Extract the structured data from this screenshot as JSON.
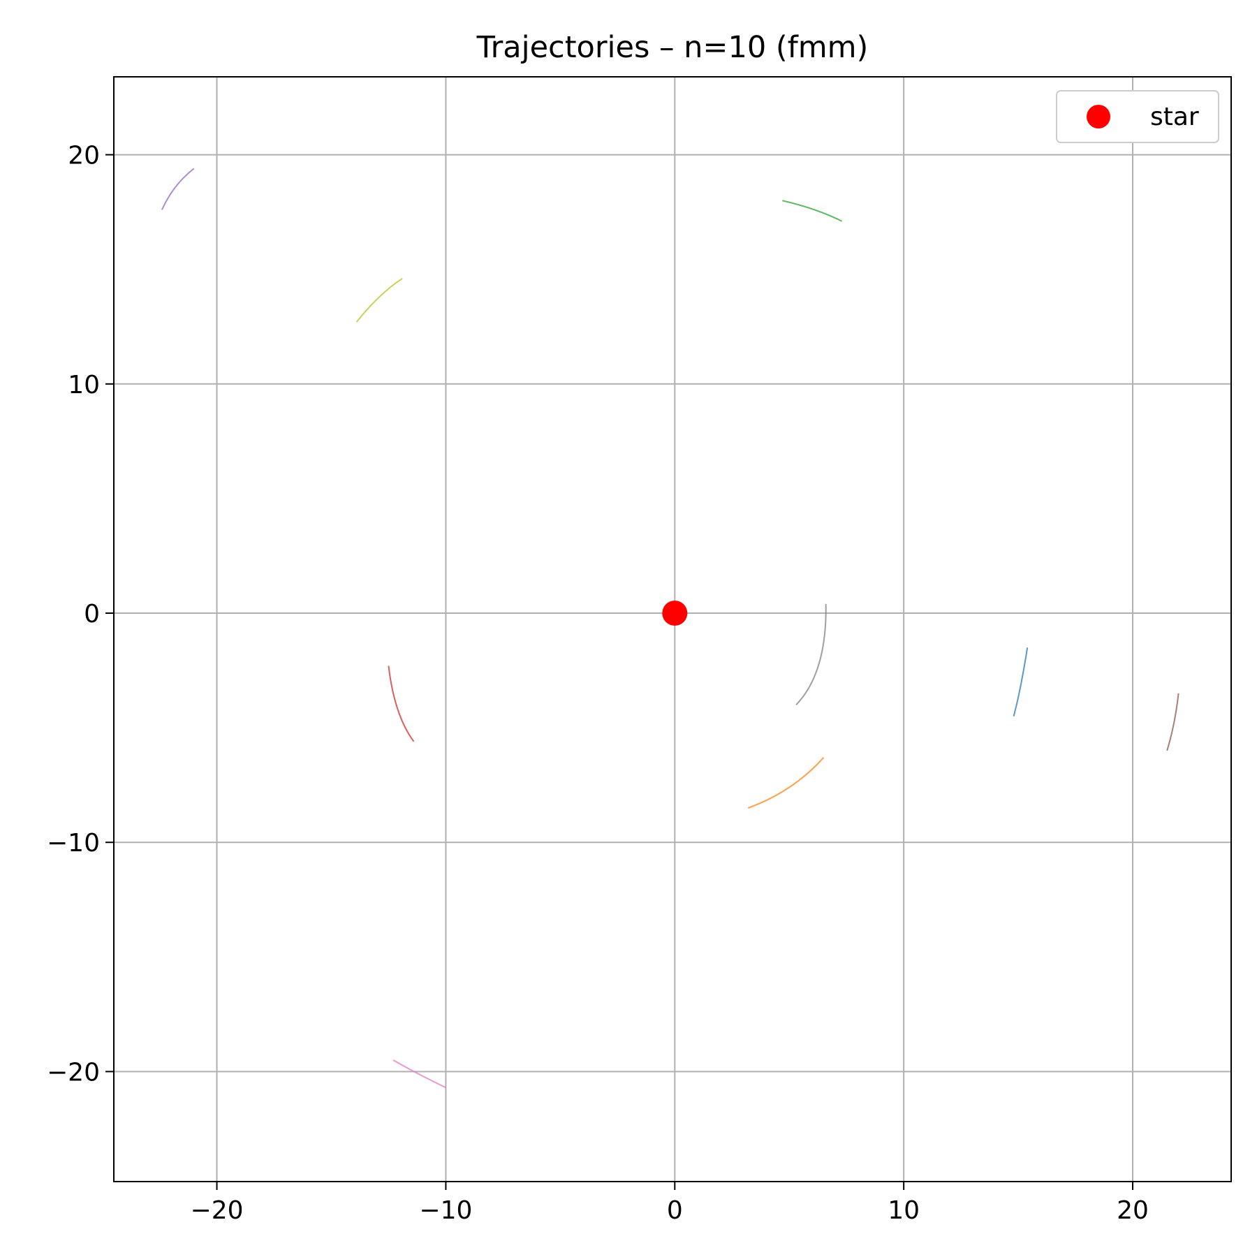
{
  "chart_data": {
    "type": "line",
    "title": "Trajectories – n=10 (fmm)",
    "xlabel": "",
    "ylabel": "",
    "xlim": [
      -24.5,
      24.3
    ],
    "ylim": [
      -24.8,
      23.4
    ],
    "xticks": [
      -20,
      -10,
      0,
      10,
      20
    ],
    "yticks": [
      20,
      10,
      0,
      -10,
      -20
    ],
    "xtick_labels": [
      "−20",
      "−10",
      "0",
      "10",
      "20"
    ],
    "ytick_labels": [
      "20",
      "10",
      "0",
      "−10",
      "−20"
    ],
    "grid": true,
    "legend": {
      "position": "top-right",
      "entries": [
        {
          "label": "star",
          "marker": "circle",
          "color": "#ff0000"
        }
      ]
    },
    "star": {
      "x": 0,
      "y": 0,
      "color": "#ff0000"
    },
    "series": [
      {
        "color": "#1f77b4",
        "points": [
          [
            15.4,
            -1.5
          ],
          [
            15.1,
            -3.2
          ],
          [
            14.8,
            -4.5
          ]
        ]
      },
      {
        "color": "#ff7f0e",
        "points": [
          [
            3.2,
            -8.5
          ],
          [
            5.0,
            -7.6
          ],
          [
            6.5,
            -6.3
          ]
        ]
      },
      {
        "color": "#2ca02c",
        "points": [
          [
            4.7,
            18.0
          ],
          [
            6.1,
            17.6
          ],
          [
            7.3,
            17.1
          ]
        ]
      },
      {
        "color": "#d62728",
        "points": [
          [
            -12.5,
            -2.3
          ],
          [
            -12.1,
            -4.2
          ],
          [
            -11.4,
            -5.6
          ]
        ]
      },
      {
        "color": "#9467bd",
        "points": [
          [
            -22.4,
            17.6
          ],
          [
            -21.8,
            18.6
          ],
          [
            -21.0,
            19.4
          ]
        ]
      },
      {
        "color": "#8c564b",
        "points": [
          [
            22.0,
            -3.5
          ],
          [
            21.8,
            -4.8
          ],
          [
            21.5,
            -6.0
          ]
        ]
      },
      {
        "color": "#e377c2",
        "points": [
          [
            -12.3,
            -19.5
          ],
          [
            -11.2,
            -20.1
          ],
          [
            -10.0,
            -20.7
          ]
        ]
      },
      {
        "color": "#7f7f7f",
        "points": [
          [
            6.6,
            0.4
          ],
          [
            6.3,
            -2.2
          ],
          [
            5.3,
            -4.0
          ]
        ]
      },
      {
        "color": "#bcbd22",
        "points": [
          [
            -13.9,
            12.7
          ],
          [
            -12.9,
            13.8
          ],
          [
            -11.9,
            14.6
          ]
        ]
      }
    ]
  }
}
